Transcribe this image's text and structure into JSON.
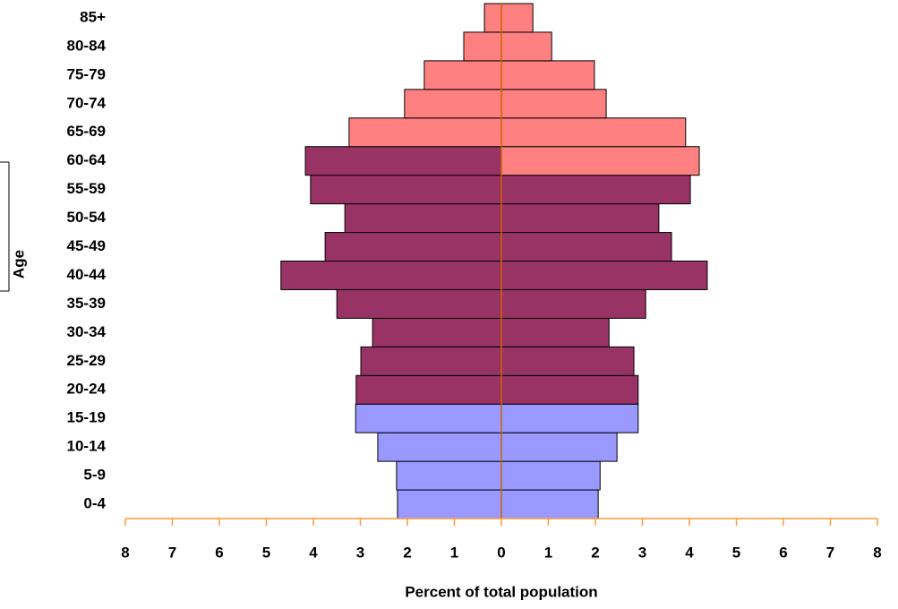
{
  "chart_data": {
    "type": "pyramid",
    "x_label": "Percent of total population",
    "y_label": "Age",
    "categories": [
      "0-4",
      "5-9",
      "10-14",
      "15-19",
      "20-24",
      "25-29",
      "30-34",
      "35-39",
      "40-44",
      "45-49",
      "50-54",
      "55-59",
      "60-64",
      "65-69",
      "70-74",
      "75-79",
      "80-84",
      "85+"
    ],
    "series": [
      {
        "values": [
          -2.21,
          -2.23,
          -2.63,
          -3.1,
          -3.09,
          -2.99,
          -2.74,
          -3.5,
          -4.69,
          -3.75,
          -3.33,
          -4.06,
          -4.17,
          -3.24,
          -2.06,
          -1.64,
          -0.8,
          -0.36
        ],
        "colors": [
          "#9999ff",
          "#9999ff",
          "#9999ff",
          "#9999ff",
          "#993366",
          "#993366",
          "#993366",
          "#993366",
          "#993366",
          "#993366",
          "#993366",
          "#993366",
          "#993366",
          "#ff8080",
          "#ff8080",
          "#ff8080",
          "#ff8080",
          "#ff8080"
        ]
      },
      {
        "values": [
          2.06,
          2.1,
          2.46,
          2.91,
          2.91,
          2.82,
          2.29,
          3.07,
          4.38,
          3.62,
          3.35,
          4.02,
          4.21,
          3.92,
          2.23,
          1.98,
          1.07,
          0.67
        ],
        "colors": [
          "#9999ff",
          "#9999ff",
          "#9999ff",
          "#9999ff",
          "#993366",
          "#993366",
          "#993366",
          "#993366",
          "#993366",
          "#993366",
          "#993366",
          "#993366",
          "#ff8080",
          "#ff8080",
          "#ff8080",
          "#ff8080",
          "#ff8080",
          "#ff8080"
        ]
      }
    ],
    "xlim": [
      -8,
      8
    ],
    "xticks": [
      {
        "value": -8,
        "label": "8"
      },
      {
        "value": -7,
        "label": "7"
      },
      {
        "value": -6,
        "label": "6"
      },
      {
        "value": -5,
        "label": "5"
      },
      {
        "value": -4,
        "label": "4"
      },
      {
        "value": -3,
        "label": "3"
      },
      {
        "value": -2,
        "label": "2"
      },
      {
        "value": -1,
        "label": "1"
      },
      0,
      1,
      2,
      3,
      4,
      5,
      6,
      7,
      8
    ],
    "axis_color": "#ff9933"
  }
}
